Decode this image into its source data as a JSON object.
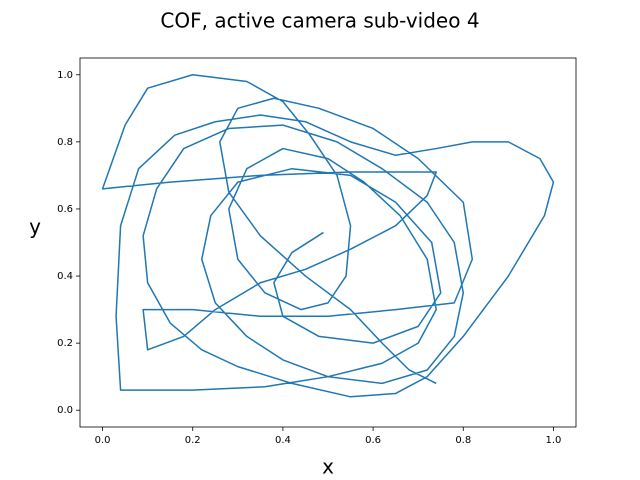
{
  "chart_data": {
    "type": "line",
    "title": "COF, active camera sub-video 4",
    "x_label": "x",
    "y_label": "y",
    "series": [
      {
        "color": "#1f77b4",
        "x": [
          0.49,
          0.42,
          0.38,
          0.4,
          0.48,
          0.6,
          0.7,
          0.75,
          0.73,
          0.65,
          0.55,
          0.42,
          0.3,
          0.24,
          0.22,
          0.25,
          0.32,
          0.4,
          0.5,
          0.62,
          0.72,
          0.78,
          0.8,
          0.78,
          0.72,
          0.62,
          0.52,
          0.4,
          0.28,
          0.18,
          0.12,
          0.09,
          0.1,
          0.15,
          0.22,
          0.3,
          0.42,
          0.55,
          0.65,
          0.72,
          0.8,
          0.9,
          0.98,
          1.0,
          0.97,
          0.9,
          0.82,
          0.74,
          0.65,
          0.55,
          0.45,
          0.35,
          0.25,
          0.16,
          0.08,
          0.04,
          0.03,
          0.04,
          0.2,
          0.36,
          0.5,
          0.62,
          0.7,
          0.74,
          0.72,
          0.66,
          0.58,
          0.5,
          0.4,
          0.32,
          0.28,
          0.3,
          0.36,
          0.44,
          0.5,
          0.54,
          0.55,
          0.52,
          0.46,
          0.4,
          0.32,
          0.2,
          0.1,
          0.05,
          0.0,
          0.15,
          0.35,
          0.55,
          0.74,
          0.72,
          0.65,
          0.55,
          0.45,
          0.35,
          0.25,
          0.18,
          0.1,
          0.09,
          0.2,
          0.35,
          0.5,
          0.65,
          0.78,
          0.82,
          0.8,
          0.7,
          0.6,
          0.48,
          0.38,
          0.3,
          0.26,
          0.28,
          0.35,
          0.45,
          0.55,
          0.62,
          0.68,
          0.74
        ],
        "y": [
          0.53,
          0.47,
          0.38,
          0.28,
          0.22,
          0.2,
          0.25,
          0.35,
          0.5,
          0.62,
          0.7,
          0.72,
          0.68,
          0.58,
          0.45,
          0.32,
          0.22,
          0.15,
          0.1,
          0.08,
          0.12,
          0.22,
          0.35,
          0.5,
          0.62,
          0.72,
          0.8,
          0.85,
          0.84,
          0.78,
          0.66,
          0.52,
          0.38,
          0.26,
          0.18,
          0.13,
          0.08,
          0.04,
          0.05,
          0.1,
          0.22,
          0.4,
          0.58,
          0.68,
          0.75,
          0.8,
          0.8,
          0.78,
          0.76,
          0.8,
          0.86,
          0.88,
          0.86,
          0.82,
          0.72,
          0.55,
          0.28,
          0.06,
          0.06,
          0.07,
          0.1,
          0.14,
          0.2,
          0.3,
          0.45,
          0.58,
          0.68,
          0.75,
          0.78,
          0.72,
          0.6,
          0.45,
          0.35,
          0.3,
          0.32,
          0.4,
          0.55,
          0.7,
          0.82,
          0.92,
          0.98,
          1.0,
          0.96,
          0.85,
          0.66,
          0.68,
          0.7,
          0.71,
          0.71,
          0.64,
          0.55,
          0.48,
          0.42,
          0.38,
          0.3,
          0.22,
          0.18,
          0.3,
          0.3,
          0.28,
          0.28,
          0.3,
          0.32,
          0.45,
          0.62,
          0.75,
          0.84,
          0.9,
          0.93,
          0.9,
          0.8,
          0.65,
          0.52,
          0.4,
          0.3,
          0.2,
          0.12,
          0.08
        ]
      }
    ],
    "xlim": [
      -0.05,
      1.05
    ],
    "ylim": [
      -0.05,
      1.05
    ],
    "xticks": [
      {
        "value": 0,
        "label": "0.0"
      },
      0.2,
      0.4,
      0.6,
      0.8,
      {
        "value": 1,
        "label": "1.0"
      }
    ],
    "yticks": [
      {
        "value": 0,
        "label": "0.0"
      },
      0.2,
      0.4,
      0.6,
      0.8,
      {
        "value": 1,
        "label": "1.0"
      }
    ]
  }
}
